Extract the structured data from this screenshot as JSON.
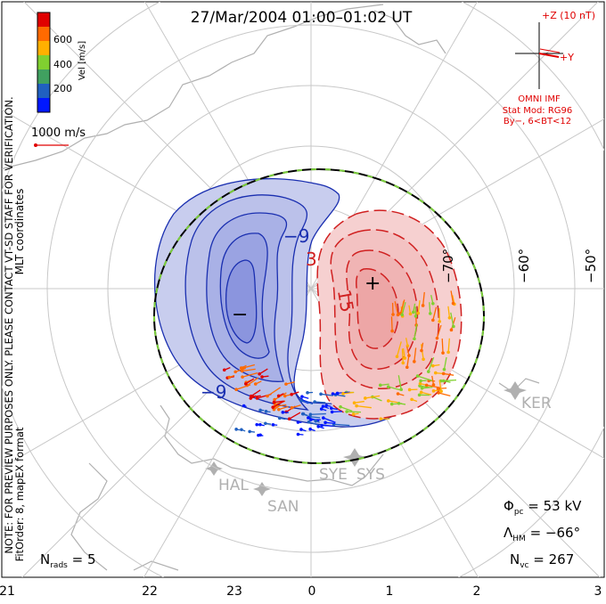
{
  "header": {
    "title": "27/Mar/2004 01:00–01:02 UT"
  },
  "colorbar": {
    "label": "Vel [m/s]",
    "ticks": [
      "600",
      "400",
      "200"
    ],
    "colors": [
      "#e00000",
      "#ff6a00",
      "#ffb000",
      "#80d030",
      "#40a060",
      "#2060c0",
      "#0018ff"
    ]
  },
  "side_text": {
    "mlt_coordinates": "MLT coordinates",
    "preview_note": "NOTE: FOR PREVIEW PURPOSES ONLY. PLEASE CONTACT VT-SD STAFF FOR VERIFICATION.",
    "fitorder": "FitOrder: 8, mapEX format"
  },
  "reference_vector": {
    "label": "1000 m/s"
  },
  "imf": {
    "z_label": "+Z (10 nT)",
    "y_label": "+Y",
    "source_label": "OMNI IMF",
    "model_label": "Stat Mod: RG96",
    "condition_label": "By−, 6<BT<12"
  },
  "latitude_labels": [
    "−70°",
    "−60°",
    "−50°"
  ],
  "contour_labels": {
    "neg": [
      "−9",
      "−9"
    ],
    "pos": [
      "3",
      "15"
    ],
    "min_marker": "−",
    "max_marker": "+"
  },
  "stations": [
    "KER",
    "SYE",
    "SYS",
    "HAL",
    "SAN"
  ],
  "stats": {
    "phi_pc": "53 kV",
    "lambda_hm": "−66°",
    "n_vc": "267",
    "n_rads": "5"
  },
  "mlt_axis": [
    "21",
    "22",
    "23",
    "0",
    "1",
    "2",
    "3"
  ],
  "colors": {
    "negative_potential": "#1a2fb0",
    "positive_potential": "#d02020",
    "negative_fill": "#c8cdee",
    "positive_fill": "#f6d0d0",
    "grid": "#c8c8c8",
    "coast": "#b0b0b0"
  }
}
